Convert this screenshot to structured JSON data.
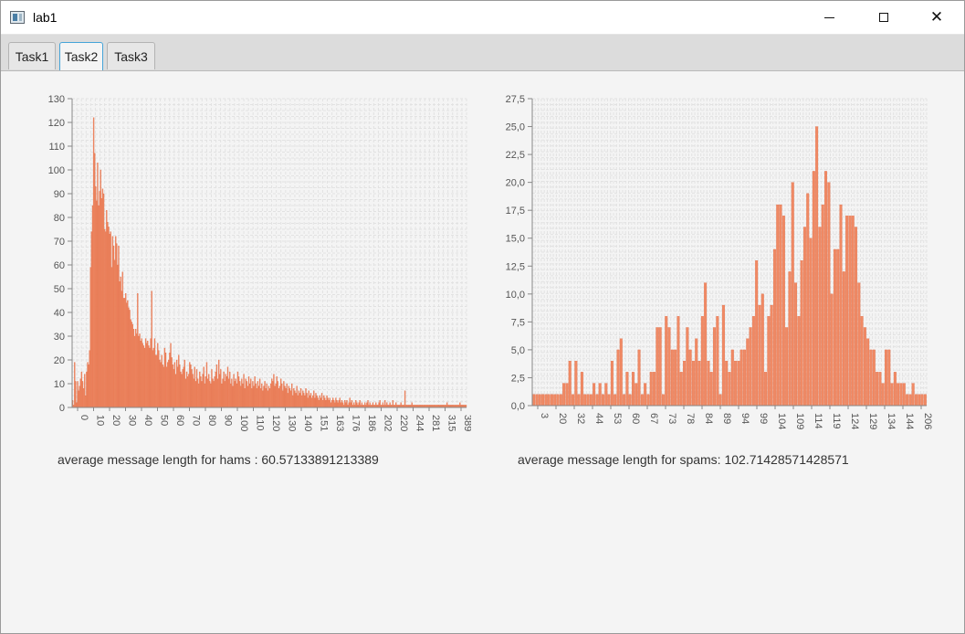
{
  "window": {
    "title": "lab1"
  },
  "tabs": [
    {
      "label": "Task1",
      "selected": false
    },
    {
      "label": "Task2",
      "selected": true
    },
    {
      "label": "Task3",
      "selected": false
    }
  ],
  "colors": {
    "bar": "#f08a65",
    "bar_stroke": "#e06840",
    "grid": "#e2e2e2",
    "axis_text": "#555555",
    "tab_focus": "#45a4d8"
  },
  "captions": {
    "hams": "average message length for hams : 60.57133891213389",
    "spams": "average message length for spams: 102.71428571428571"
  },
  "chart_data": [
    {
      "type": "bar",
      "title": "",
      "xlabel": "",
      "ylabel": "",
      "ylim": [
        0,
        130
      ],
      "y_ticks": [
        "0",
        "10",
        "20",
        "30",
        "40",
        "50",
        "60",
        "70",
        "80",
        "90",
        "100",
        "110",
        "120",
        "130"
      ],
      "x_tick_labels": [
        "0",
        "10",
        "20",
        "30",
        "40",
        "50",
        "60",
        "70",
        "80",
        "90",
        "100",
        "110",
        "120",
        "130",
        "140",
        "151",
        "163",
        "176",
        "186",
        "202",
        "220",
        "244",
        "281",
        "315",
        "389"
      ],
      "values": [
        3,
        1,
        19,
        11,
        2,
        11,
        7,
        9,
        12,
        15,
        11,
        8,
        14,
        5,
        15,
        19,
        18,
        24,
        59,
        74,
        85,
        122,
        107,
        93,
        87,
        103,
        85,
        91,
        100,
        88,
        92,
        90,
        75,
        74,
        83,
        78,
        76,
        73,
        74,
        59,
        72,
        68,
        62,
        72,
        69,
        60,
        68,
        53,
        55,
        49,
        57,
        46,
        46,
        48,
        44,
        45,
        42,
        41,
        37,
        36,
        35,
        33,
        30,
        33,
        31,
        48,
        30,
        31,
        28,
        29,
        27,
        26,
        25,
        29,
        27,
        28,
        26,
        25,
        29,
        49,
        24,
        25,
        29,
        22,
        22,
        27,
        24,
        20,
        19,
        22,
        18,
        17,
        25,
        23,
        17,
        19,
        20,
        23,
        27,
        21,
        18,
        16,
        19,
        14,
        20,
        17,
        22,
        18,
        15,
        14,
        16,
        17,
        20,
        12,
        15,
        13,
        14,
        19,
        18,
        16,
        14,
        12,
        17,
        11,
        16,
        12,
        10,
        15,
        13,
        11,
        14,
        17,
        10,
        13,
        19,
        12,
        14,
        11,
        10,
        16,
        12,
        11,
        13,
        15,
        18,
        12,
        20,
        14,
        16,
        10,
        12,
        15,
        11,
        14,
        13,
        17,
        12,
        15,
        10,
        12,
        9,
        14,
        11,
        12,
        10,
        15,
        13,
        11,
        9,
        12,
        10,
        14,
        8,
        12,
        11,
        9,
        13,
        10,
        12,
        8,
        11,
        9,
        13,
        10,
        8,
        11,
        9,
        12,
        8,
        10,
        7,
        9,
        11,
        8,
        10,
        7,
        9,
        8,
        10,
        12,
        11,
        14,
        9,
        10,
        13,
        11,
        8,
        9,
        12,
        10,
        7,
        11,
        9,
        8,
        10,
        6,
        9,
        8,
        7,
        10,
        5,
        8,
        7,
        6,
        9,
        5,
        7,
        6,
        8,
        5,
        7,
        6,
        5,
        8,
        6,
        4,
        7,
        5,
        6,
        4,
        5,
        7,
        4,
        6,
        5,
        4,
        3,
        5,
        4,
        6,
        3,
        5,
        4,
        3,
        5,
        4,
        3,
        4,
        2,
        3,
        4,
        3,
        2,
        4,
        3,
        2,
        3,
        4,
        2,
        3,
        2,
        1,
        3,
        2,
        3,
        1,
        2,
        4,
        2,
        3,
        1,
        2,
        1,
        3,
        2,
        1,
        2,
        3,
        1,
        2,
        1,
        1,
        2,
        1,
        2,
        3,
        1,
        2,
        1,
        1,
        2,
        1,
        1,
        2,
        1,
        1,
        2,
        3,
        1,
        1,
        2,
        1,
        3,
        1,
        2,
        1,
        1,
        2,
        1,
        1,
        3,
        1,
        1,
        2,
        1,
        1,
        1,
        1,
        2,
        1,
        1,
        1,
        7,
        1,
        1,
        1,
        1,
        1,
        1,
        2,
        1,
        1,
        1,
        1,
        1,
        1,
        1,
        1,
        1,
        1,
        1,
        1,
        1,
        1,
        1,
        1,
        1,
        1,
        1,
        1,
        1,
        1,
        1,
        1,
        1,
        1,
        1,
        1,
        1,
        1,
        1,
        1,
        1,
        1,
        2,
        1,
        1,
        1,
        1,
        1,
        1,
        1,
        1,
        1,
        1,
        1,
        1,
        2,
        1,
        1,
        1,
        1,
        1,
        1
      ]
    },
    {
      "type": "bar",
      "title": "",
      "xlabel": "",
      "ylabel": "",
      "ylim": [
        0,
        27.5
      ],
      "y_ticks": [
        "0,0",
        "2,5",
        "5,0",
        "7,5",
        "10,0",
        "12,5",
        "15,0",
        "17,5",
        "20,0",
        "22,5",
        "25,0",
        "27,5"
      ],
      "x_tick_labels": [
        "3",
        "20",
        "32",
        "44",
        "53",
        "60",
        "67",
        "73",
        "78",
        "84",
        "89",
        "94",
        "99",
        "104",
        "109",
        "114",
        "119",
        "124",
        "129",
        "134",
        "144",
        "206"
      ],
      "values": [
        1,
        1,
        1,
        1,
        1,
        1,
        1,
        1,
        1,
        1,
        2,
        2,
        4,
        1,
        4,
        1,
        3,
        1,
        1,
        1,
        2,
        1,
        2,
        1,
        2,
        1,
        4,
        1,
        5,
        6,
        1,
        3,
        1,
        3,
        2,
        5,
        1,
        2,
        1,
        3,
        3,
        7,
        7,
        1,
        8,
        7,
        5,
        5,
        8,
        3,
        4,
        7,
        5,
        4,
        6,
        4,
        8,
        11,
        4,
        3,
        7,
        8,
        1,
        9,
        4,
        3,
        5,
        4,
        4,
        5,
        5,
        6,
        7,
        8,
        13,
        9,
        10,
        3,
        8,
        9,
        14,
        18,
        18,
        17,
        7,
        12,
        20,
        11,
        8,
        13,
        16,
        19,
        15,
        21,
        25,
        16,
        18,
        21,
        20,
        10,
        14,
        14,
        18,
        12,
        17,
        17,
        17,
        16,
        11,
        8,
        7,
        6,
        5,
        5,
        3,
        3,
        2,
        5,
        5,
        2,
        3,
        2,
        2,
        2,
        1,
        1,
        2,
        1,
        1,
        1,
        1
      ]
    }
  ]
}
